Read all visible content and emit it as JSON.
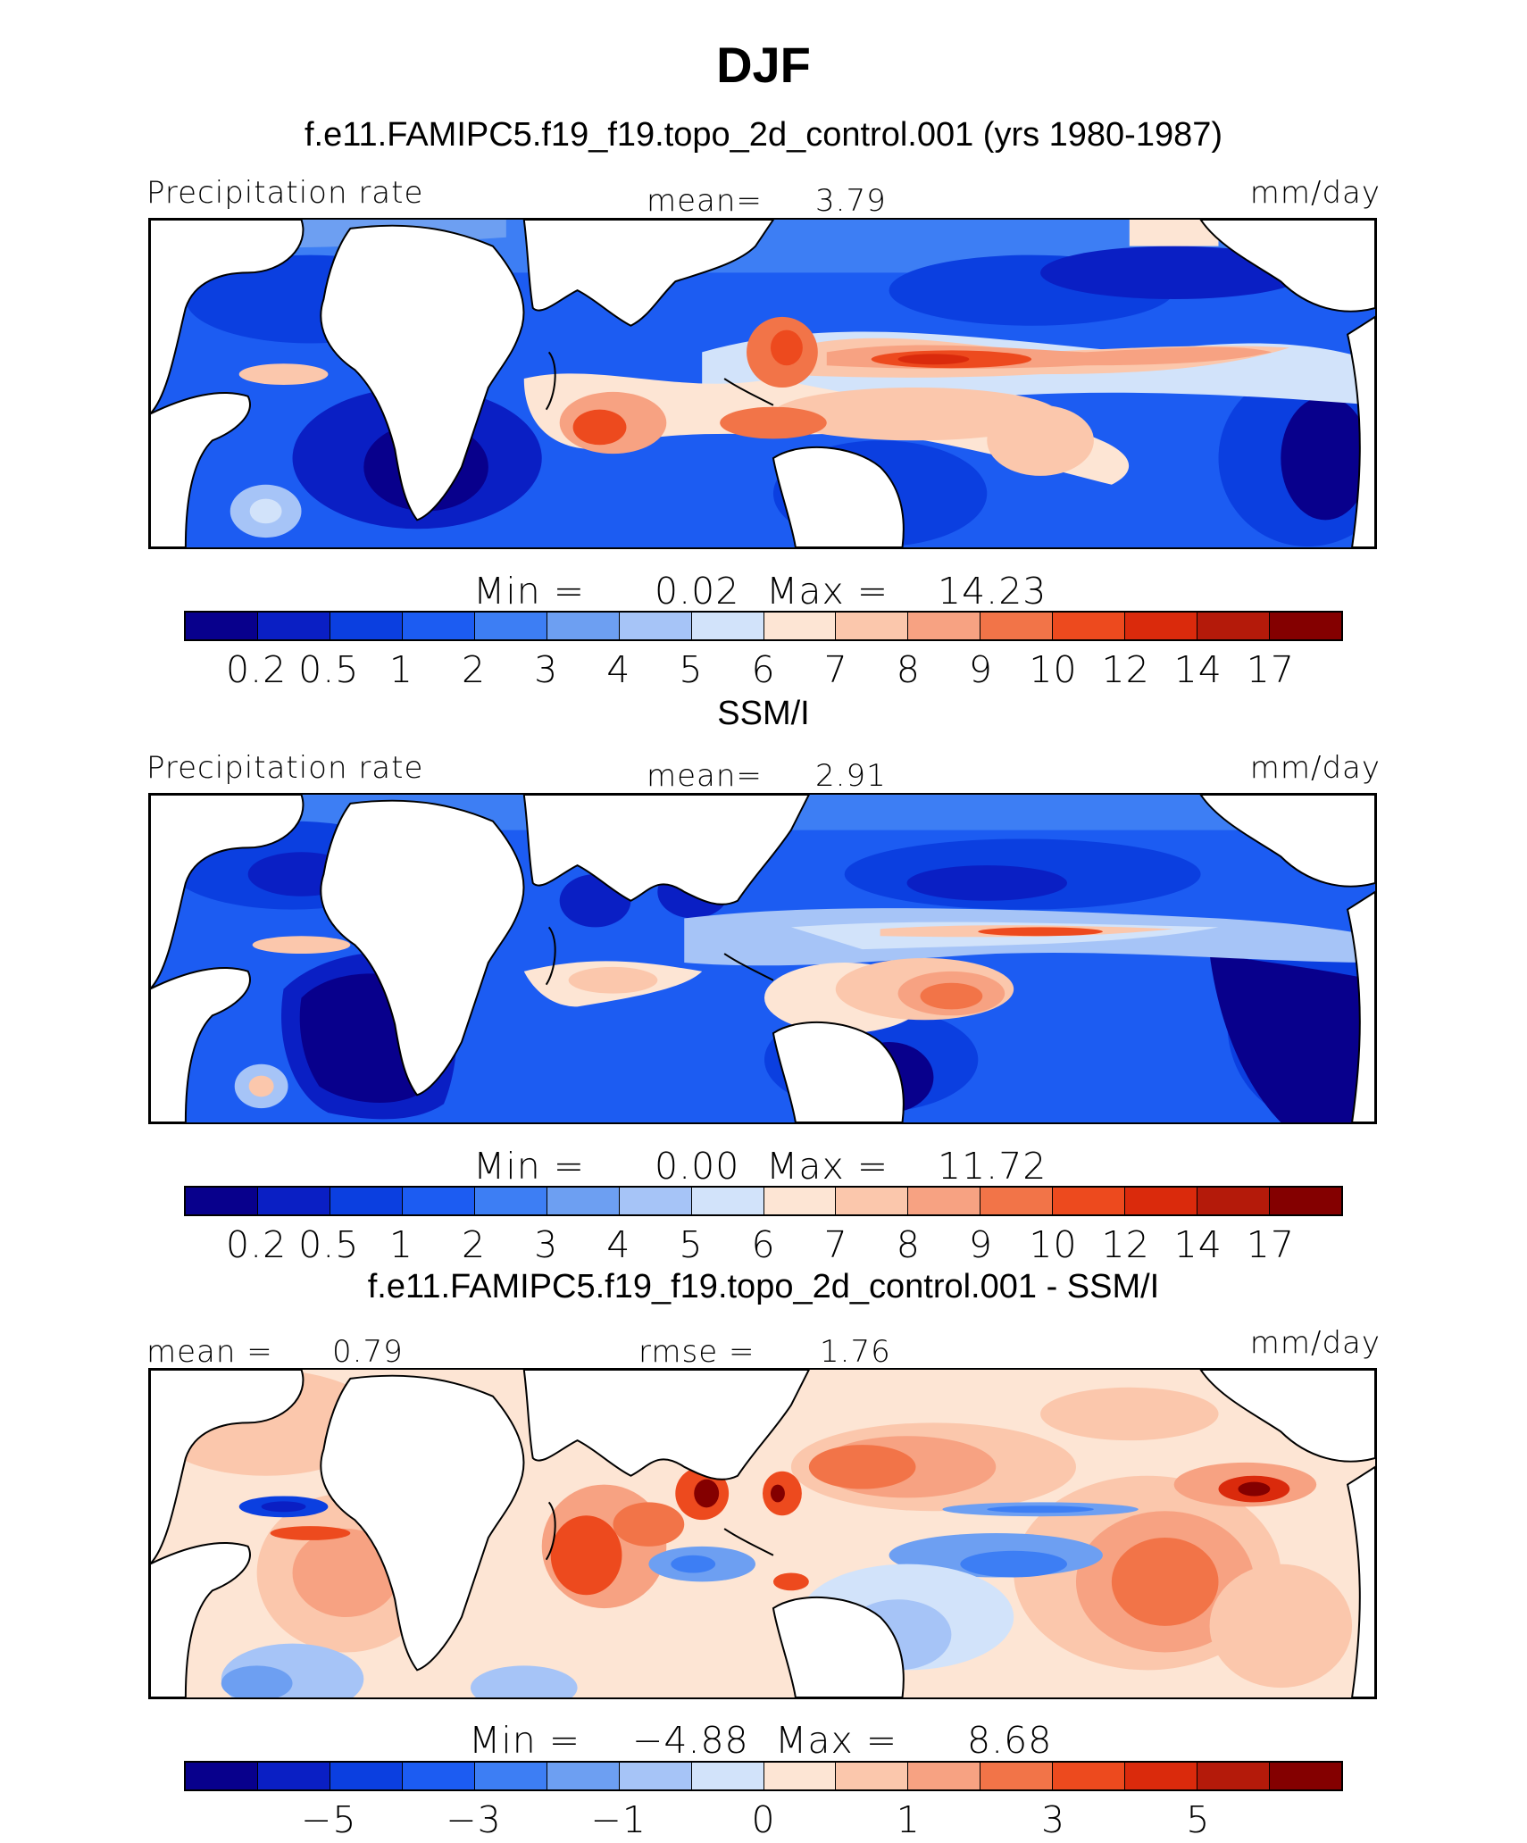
{
  "title": "DJF",
  "colors": {
    "abs": [
      "#08008c",
      "#0a1fc4",
      "#0b3fe0",
      "#1c5cf2",
      "#3d7ef4",
      "#6d9ff2",
      "#a6c4f7",
      "#d2e3fa",
      "#fde5d4",
      "#fbc7ac",
      "#f7a282",
      "#f27448",
      "#ed4a1e",
      "#da2a0c",
      "#b41a0a",
      "#840000"
    ],
    "diff": [
      "#08008c",
      "#0a1fc4",
      "#0b3fe0",
      "#1c5cf2",
      "#3d7ef4",
      "#6d9ff2",
      "#a6c4f7",
      "#d2e3fa",
      "#fde5d4",
      "#fbc7ac",
      "#f7a282",
      "#f27448",
      "#ed4a1e",
      "#da2a0c",
      "#b41a0a",
      "#840000"
    ]
  },
  "chart_data": [
    {
      "type": "heatmap",
      "title": "f.e11.FAMIPC5.f19_f19.topo_2d_control.001 (yrs 1980-1987)",
      "variable": "Precipitation rate",
      "units": "mm/day",
      "mean_label": "mean=",
      "mean": "3.79",
      "min_label": "Min =",
      "min": "0.02",
      "max_label": "Max =",
      "max": "14.23",
      "colorbar_levels": [
        0.2,
        0.5,
        1,
        2,
        3,
        4,
        5,
        6,
        7,
        8,
        9,
        10,
        12,
        14,
        17
      ],
      "colorbar_tick_labels": [
        "0.2",
        "0.5",
        "1",
        "2",
        "3",
        "4",
        "5",
        "6",
        "7",
        "8",
        "9",
        "10",
        "12",
        "14",
        "17"
      ]
    },
    {
      "type": "heatmap",
      "title": "SSM/I",
      "variable": "Precipitation rate",
      "units": "mm/day",
      "mean_label": "mean=",
      "mean": "2.91",
      "min_label": "Min =",
      "min": "0.00",
      "max_label": "Max =",
      "max": "11.72",
      "colorbar_levels": [
        0.2,
        0.5,
        1,
        2,
        3,
        4,
        5,
        6,
        7,
        8,
        9,
        10,
        12,
        14,
        17
      ],
      "colorbar_tick_labels": [
        "0.2",
        "0.5",
        "1",
        "2",
        "3",
        "4",
        "5",
        "6",
        "7",
        "8",
        "9",
        "10",
        "12",
        "14",
        "17"
      ]
    },
    {
      "type": "heatmap",
      "title": "f.e11.FAMIPC5.f19_f19.topo_2d_control.001 - SSM/I",
      "units": "mm/day",
      "mean_label": "mean =",
      "mean": "0.79",
      "rmse_label": "rmse =",
      "rmse": "1.76",
      "min_label": "Min =",
      "min": "−4.88",
      "max_label": "Max =",
      "max": "8.68",
      "colorbar_levels": [
        -5,
        -3,
        -1,
        0,
        1,
        3,
        5
      ],
      "colorbar_tick_labels": [
        "−5",
        "−3",
        "−1",
        "0",
        "1",
        "3",
        "5"
      ]
    }
  ]
}
